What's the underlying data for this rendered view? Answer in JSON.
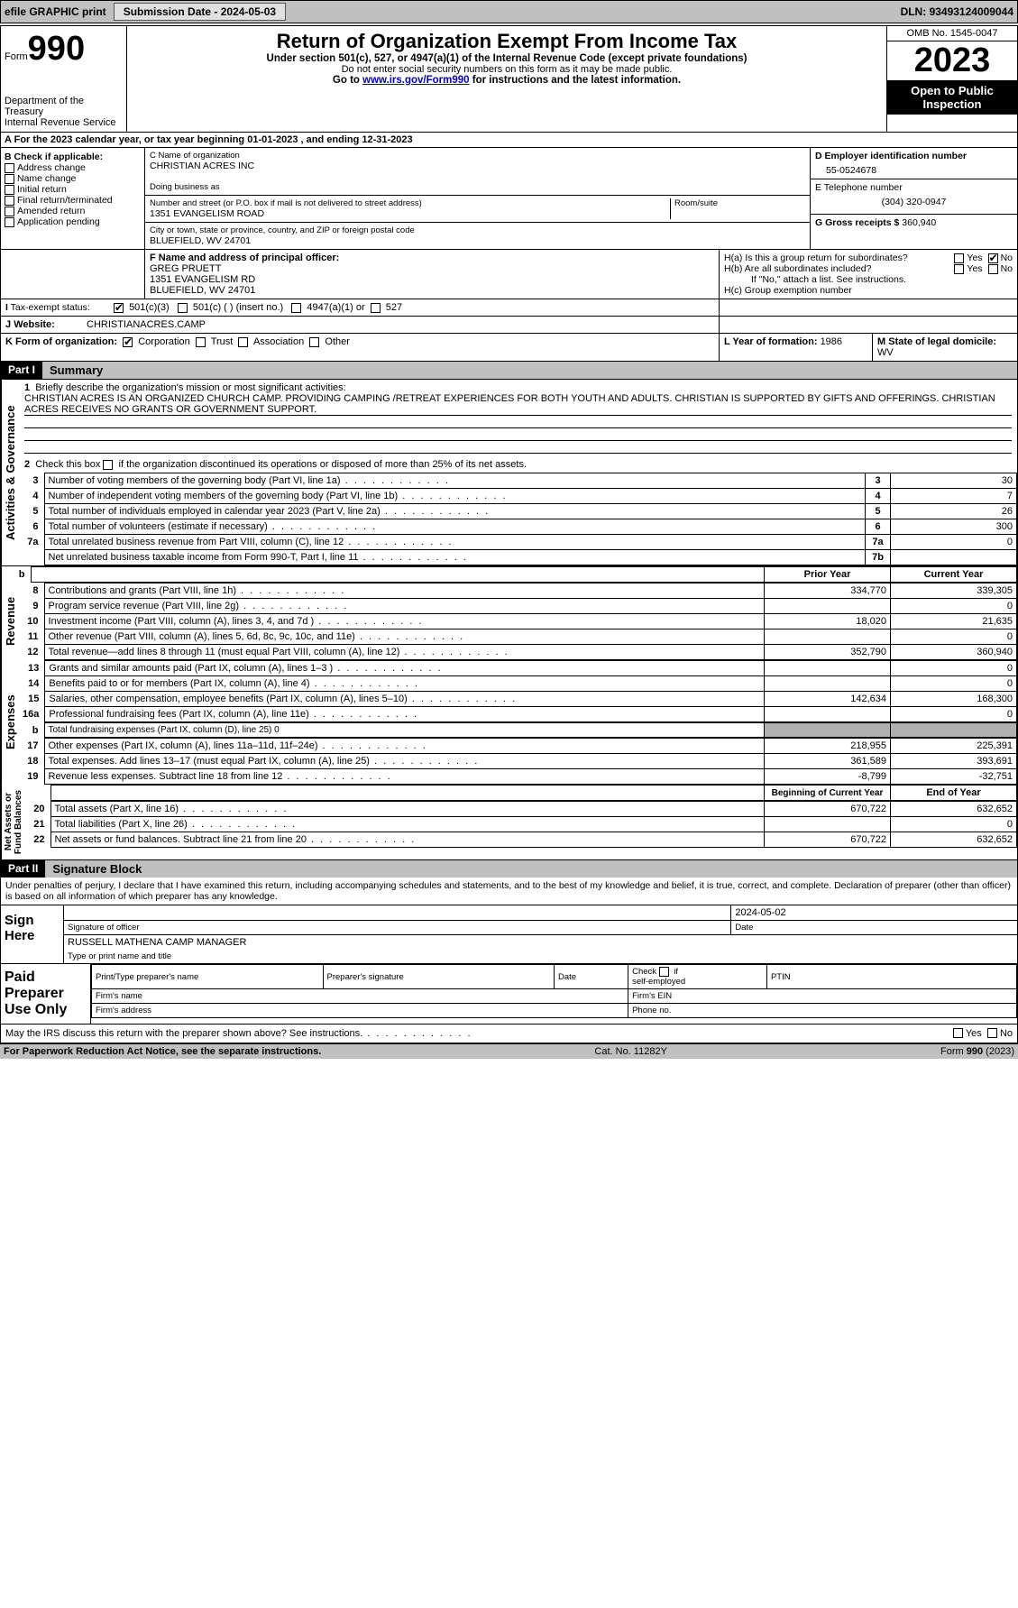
{
  "topbar": {
    "efile": "efile GRAPHIC print",
    "submission_label": "Submission Date - ",
    "submission_date": "2024-05-03",
    "dln_label": "DLN: ",
    "dln": "93493124009044"
  },
  "header": {
    "form_word": "Form",
    "form_no": "990",
    "dept": "Department of the Treasury",
    "irs": "Internal Revenue Service",
    "title": "Return of Organization Exempt From Income Tax",
    "sub1": "Under section 501(c), 527, or 4947(a)(1) of the Internal Revenue Code (except private foundations)",
    "sub2": "Do not enter social security numbers on this form as it may be made public.",
    "sub3_pre": "Go to ",
    "sub3_link": "www.irs.gov/Form990",
    "sub3_post": " for instructions and the latest information.",
    "omb": "OMB No. 1545-0047",
    "year": "2023",
    "open": "Open to Public Inspection"
  },
  "A": {
    "text": "For the 2023 calendar year, or tax year beginning ",
    "begin": "01-01-2023",
    "mid": " , and ending ",
    "end": "12-31-2023"
  },
  "B": {
    "label": "B Check if applicable:",
    "opts": [
      "Address change",
      "Name change",
      "Initial return",
      "Final return/terminated",
      "Amended return",
      "Application pending"
    ]
  },
  "C": {
    "name_lbl": "C Name of organization",
    "name": "CHRISTIAN ACRES INC",
    "dba_lbl": "Doing business as",
    "addr_lbl": "Number and street (or P.O. box if mail is not delivered to street address)",
    "room_lbl": "Room/suite",
    "addr": "1351 EVANGELISM ROAD",
    "city_lbl": "City or town, state or province, country, and ZIP or foreign postal code",
    "city": "BLUEFIELD, WV  24701"
  },
  "D": {
    "lbl": "D Employer identification number",
    "val": "55-0524678"
  },
  "E": {
    "lbl": "E Telephone number",
    "val": "(304) 320-0947"
  },
  "G": {
    "lbl": "G Gross receipts $ ",
    "val": "360,940"
  },
  "F": {
    "lbl": "F  Name and address of principal officer:",
    "name": "GREG PRUETT",
    "addr1": "1351 EVANGELISM RD",
    "addr2": "BLUEFIELD, WV  24701"
  },
  "H": {
    "a": "H(a)  Is this a group return for subordinates?",
    "b": "H(b)  Are all subordinates included?",
    "b_note": "If \"No,\" attach a list. See instructions.",
    "c": "H(c)  Group exemption number ",
    "yes": "Yes",
    "no": "No"
  },
  "I": {
    "lbl": "Tax-exempt status:",
    "c3": "501(c)(3)",
    "c": "501(c) (  ) (insert no.)",
    "a1": "4947(a)(1) or",
    "527": "527"
  },
  "J": {
    "lbl": "Website: ",
    "val": "CHRISTIANACRES.CAMP"
  },
  "K": {
    "lbl": "K Form of organization:",
    "corp": "Corporation",
    "trust": "Trust",
    "assoc": "Association",
    "other": "Other"
  },
  "L": {
    "lbl": "L Year of formation: ",
    "val": "1986"
  },
  "M": {
    "lbl": "M State of legal domicile:",
    "val": "WV"
  },
  "part1": {
    "tag": "Part I",
    "title": "Summary",
    "l1_lbl": "Briefly describe the organization's mission or most significant activities:",
    "l1_val": "CHRISTIAN ACRES IS AN ORGANIZED CHURCH CAMP. PROVIDING CAMPING /RETREAT EXPERIENCES FOR BOTH YOUTH AND ADULTS. CHRISTIAN IS SUPPORTED BY GIFTS AND OFFERINGS. CHRISTIAN ACRES RECEIVES NO GRANTS OR GOVERNMENT SUPPORT.",
    "l2": "Check this box      if the organization discontinued its operations or disposed of more than 25% of its net assets.",
    "rows_top": [
      {
        "n": "3",
        "t": "Number of voting members of the governing body (Part VI, line 1a)",
        "box": "3",
        "v": "30"
      },
      {
        "n": "4",
        "t": "Number of independent voting members of the governing body (Part VI, line 1b)",
        "box": "4",
        "v": "7"
      },
      {
        "n": "5",
        "t": "Total number of individuals employed in calendar year 2023 (Part V, line 2a)",
        "box": "5",
        "v": "26"
      },
      {
        "n": "6",
        "t": "Total number of volunteers (estimate if necessary)",
        "box": "6",
        "v": "300"
      },
      {
        "n": "7a",
        "t": "Total unrelated business revenue from Part VIII, column (C), line 12",
        "box": "7a",
        "v": "0"
      },
      {
        "n": "",
        "t": "Net unrelated business taxable income from Form 990-T, Part I, line 11",
        "box": "7b",
        "v": ""
      }
    ],
    "py": "Prior Year",
    "cy": "Current Year",
    "rev_rows": [
      {
        "n": "8",
        "t": "Contributions and grants (Part VIII, line 1h)",
        "p": "334,770",
        "c": "339,305"
      },
      {
        "n": "9",
        "t": "Program service revenue (Part VIII, line 2g)",
        "p": "",
        "c": "0"
      },
      {
        "n": "10",
        "t": "Investment income (Part VIII, column (A), lines 3, 4, and 7d )",
        "p": "18,020",
        "c": "21,635"
      },
      {
        "n": "11",
        "t": "Other revenue (Part VIII, column (A), lines 5, 6d, 8c, 9c, 10c, and 11e)",
        "p": "",
        "c": "0"
      },
      {
        "n": "12",
        "t": "Total revenue—add lines 8 through 11 (must equal Part VIII, column (A), line 12)",
        "p": "352,790",
        "c": "360,940"
      }
    ],
    "exp_rows": [
      {
        "n": "13",
        "t": "Grants and similar amounts paid (Part IX, column (A), lines 1–3 )",
        "p": "",
        "c": "0"
      },
      {
        "n": "14",
        "t": "Benefits paid to or for members (Part IX, column (A), line 4)",
        "p": "",
        "c": "0"
      },
      {
        "n": "15",
        "t": "Salaries, other compensation, employee benefits (Part IX, column (A), lines 5–10)",
        "p": "142,634",
        "c": "168,300"
      },
      {
        "n": "16a",
        "t": "Professional fundraising fees (Part IX, column (A), line 11e)",
        "p": "",
        "c": "0"
      }
    ],
    "exp_b": {
      "n": "b",
      "t": "Total fundraising expenses (Part IX, column (D), line 25) 0"
    },
    "exp_rows2": [
      {
        "n": "17",
        "t": "Other expenses (Part IX, column (A), lines 11a–11d, 11f–24e)",
        "p": "218,955",
        "c": "225,391"
      },
      {
        "n": "18",
        "t": "Total expenses. Add lines 13–17 (must equal Part IX, column (A), line 25)",
        "p": "361,589",
        "c": "393,691"
      },
      {
        "n": "19",
        "t": "Revenue less expenses. Subtract line 18 from line 12",
        "p": "-8,799",
        "c": "-32,751"
      }
    ],
    "boy": "Beginning of Current Year",
    "eoy": "End of Year",
    "na_rows": [
      {
        "n": "20",
        "t": "Total assets (Part X, line 16)",
        "p": "670,722",
        "c": "632,652"
      },
      {
        "n": "21",
        "t": "Total liabilities (Part X, line 26)",
        "p": "",
        "c": "0"
      },
      {
        "n": "22",
        "t": "Net assets or fund balances. Subtract line 21 from line 20",
        "p": "670,722",
        "c": "632,652"
      }
    ],
    "vlabels": {
      "ag": "Activities & Governance",
      "rev": "Revenue",
      "exp": "Expenses",
      "na": "Net Assets or\nFund Balances"
    }
  },
  "part2": {
    "tag": "Part II",
    "title": "Signature Block",
    "decl": "Under penalties of perjury, I declare that I have examined this return, including accompanying schedules and statements, and to the best of my knowledge and belief, it is true, correct, and complete. Declaration of preparer (other than officer) is based on all information of which preparer has any knowledge.",
    "sign_here": "Sign Here",
    "sig_officer": "Signature of officer",
    "date": "Date",
    "sig_date": "2024-05-02",
    "officer_name": "RUSSELL MATHENA  CAMP MANAGER",
    "type_title": "Type or print name and title",
    "paid": "Paid Preparer Use Only",
    "ptp": "Print/Type preparer's name",
    "psig": "Preparer's signature",
    "chkif": "Check        if self-employed",
    "ptin": "PTIN",
    "fname": "Firm's name",
    "fein": "Firm's EIN",
    "faddr": "Firm's address",
    "phone": "Phone no.",
    "may": "May the IRS discuss this return with the preparer shown above? See instructions."
  },
  "footer": {
    "pra": "For Paperwork Reduction Act Notice, see the separate instructions.",
    "cat": "Cat. No. 11282Y",
    "form": "Form 990 (2023)"
  }
}
